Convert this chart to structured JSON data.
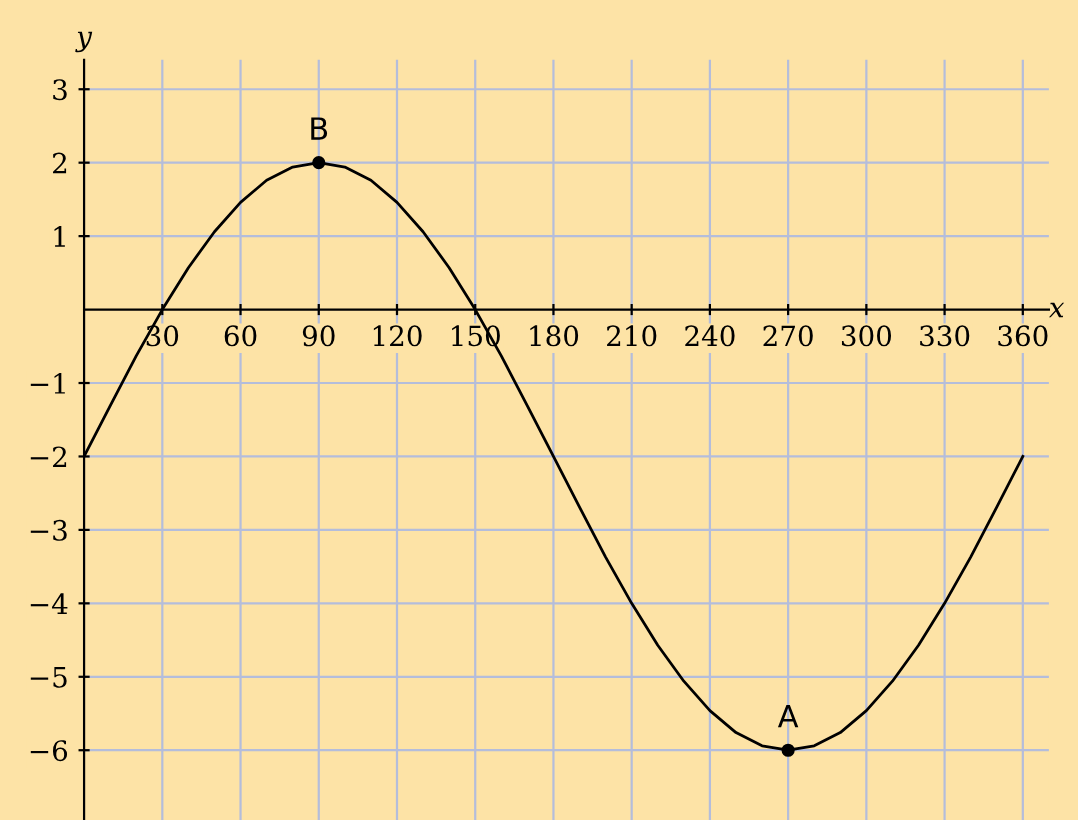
{
  "chart_data": {
    "type": "line",
    "xlabel": "x",
    "ylabel": "y",
    "x": [
      0,
      10,
      20,
      30,
      40,
      50,
      60,
      70,
      80,
      90,
      100,
      110,
      120,
      130,
      140,
      150,
      160,
      170,
      180,
      190,
      200,
      210,
      220,
      230,
      240,
      250,
      260,
      270,
      280,
      290,
      300,
      310,
      320,
      330,
      340,
      350,
      360
    ],
    "series": [
      {
        "color": "#000000",
        "values": [
          -2,
          -1.31,
          -0.63,
          0,
          0.57,
          1.06,
          1.46,
          1.76,
          1.94,
          2,
          1.94,
          1.76,
          1.46,
          1.06,
          0.57,
          0,
          -0.63,
          -1.31,
          -2,
          -2.69,
          -3.37,
          -4,
          -4.57,
          -5.06,
          -5.46,
          -5.76,
          -5.94,
          -6,
          -5.94,
          -5.76,
          -5.46,
          -5.06,
          -4.57,
          -4,
          -3.37,
          -2.69,
          -2
        ]
      },
      {
        "type": "scatter",
        "color": "#000000",
        "x": [
          270,
          90
        ],
        "values": [
          -6,
          2
        ],
        "marker": "circle"
      }
    ],
    "annotations": [
      {
        "text": "A",
        "x": 270,
        "y": -6
      },
      {
        "text": "B",
        "x": 90,
        "y": 2
      }
    ],
    "xlim": [
      0,
      370
    ],
    "ylim": [
      -6.95,
      3.4
    ],
    "xticks": [
      30,
      60,
      90,
      120,
      150,
      180,
      210,
      240,
      270,
      300,
      330,
      360
    ],
    "yticks": [
      -6,
      -5,
      -4,
      -3,
      -2,
      -1,
      1,
      2,
      3
    ],
    "grid": true,
    "marker": "none",
    "line_style": "solid"
  }
}
